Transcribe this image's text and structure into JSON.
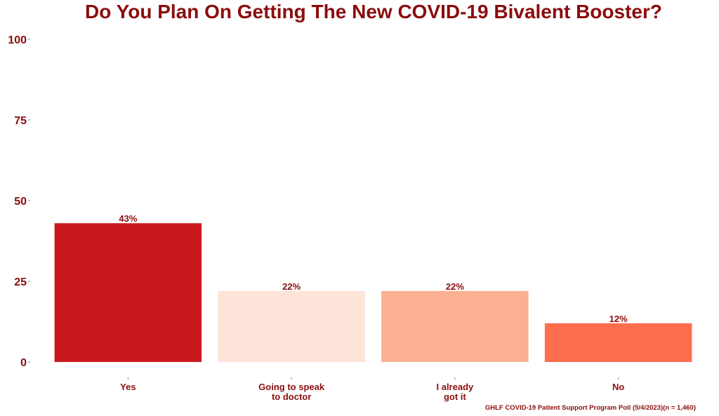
{
  "chart_data": {
    "type": "bar",
    "title": "Do You Plan On Getting The New COVID-19 Bivalent Booster?",
    "categories": [
      [
        "Yes"
      ],
      [
        "Going to speak",
        "to doctor"
      ],
      [
        "I already",
        "got it"
      ],
      [
        "No"
      ]
    ],
    "values": [
      43,
      22,
      22,
      12
    ],
    "data_labels": [
      "43%",
      "22%",
      "22%",
      "12%"
    ],
    "bar_colors": [
      "#c9191e",
      "#fee3d8",
      "#fbb093",
      "#fd6d4e"
    ],
    "ylim": [
      0,
      100
    ],
    "yticks": [
      0,
      25,
      50,
      75,
      100
    ],
    "ytick_labels": [
      "0",
      "25",
      "50",
      "75",
      "100"
    ],
    "xlabel": "",
    "ylabel": "",
    "grid": false,
    "legend": "none",
    "caption": "GHLF COVID-19 Patient Support Program Poll (5/4/2023)(n = 1,460)"
  },
  "colors": {
    "text": "#8b0d0d",
    "tick": "#8b8b8b"
  }
}
